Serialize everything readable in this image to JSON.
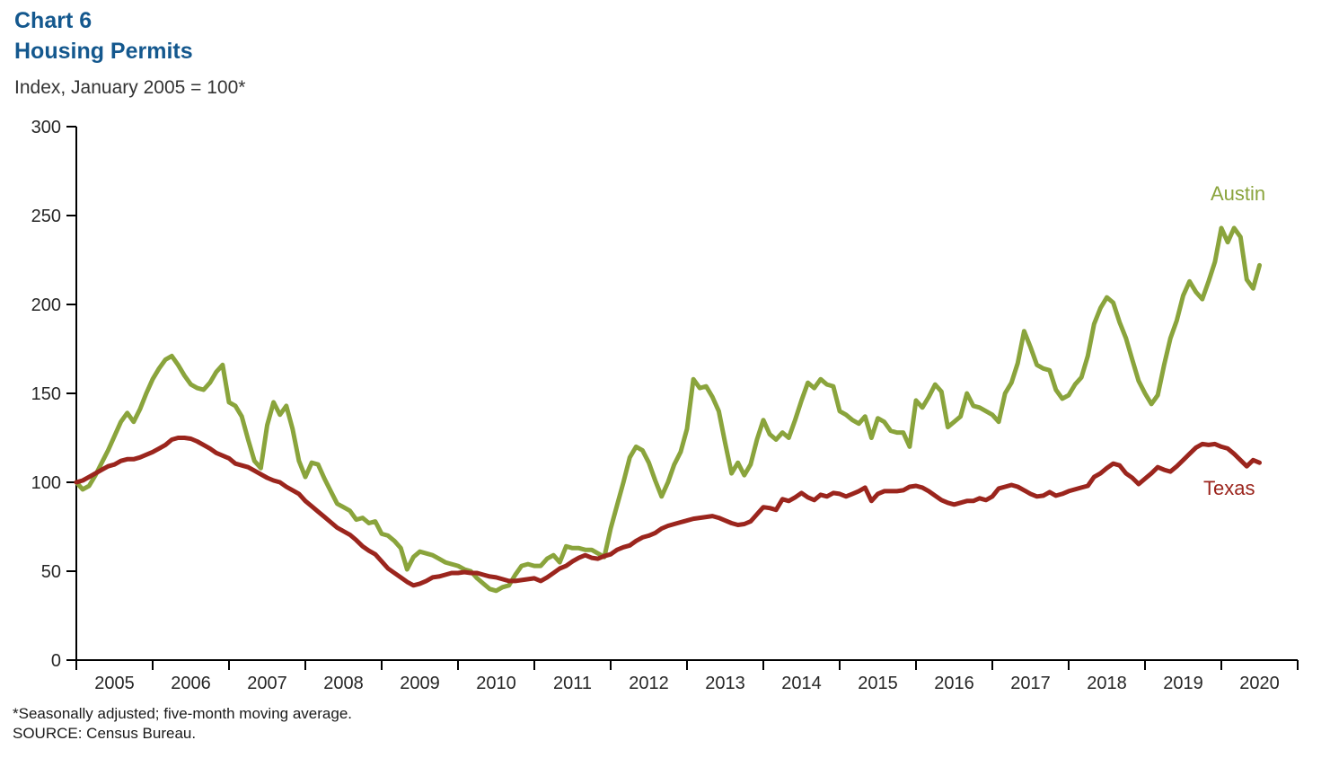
{
  "page": {
    "title_line1": "Chart 6",
    "title_line2": "Housing Permits",
    "subtitle": "Index, January 2005 = 100*",
    "footnote": "*Seasonally adjusted; five-month moving average.",
    "source": "SOURCE: Census Bureau."
  },
  "colors": {
    "title": "#14588E",
    "austin": "#8AA43C",
    "texas": "#9B251D",
    "axis": "#000000",
    "tick_text": "#262626"
  },
  "chart_data": {
    "type": "line",
    "title": "Housing Permits",
    "subtitle": "Index, January 2005 = 100*",
    "x_unit": "month",
    "x_start": "2005-01",
    "x_end": "2020-07",
    "x_tick_years": [
      "2005",
      "2006",
      "2007",
      "2008",
      "2009",
      "2010",
      "2011",
      "2012",
      "2013",
      "2014",
      "2015",
      "2016",
      "2017",
      "2018",
      "2019",
      "2020"
    ],
    "ylim": [
      0,
      300
    ],
    "yticks": [
      0,
      50,
      100,
      150,
      200,
      250,
      300
    ],
    "grid": false,
    "legend": "inline-labels",
    "series": [
      {
        "name": "Austin",
        "color": "#8AA43C",
        "values": [
          100,
          96,
          98,
          104,
          111,
          118,
          126,
          134,
          139,
          134,
          141,
          150,
          158,
          164,
          169,
          171,
          166,
          160,
          155,
          153,
          152,
          156,
          162,
          166,
          145,
          143,
          137,
          124,
          112,
          108,
          132,
          145,
          138,
          143,
          130,
          112,
          103,
          111,
          110,
          102,
          95,
          88,
          86,
          84,
          79,
          80,
          77,
          78,
          71,
          70,
          67,
          63,
          51,
          58,
          61,
          60,
          59,
          57,
          55,
          54,
          53,
          51,
          50,
          46,
          43,
          40,
          39,
          41,
          42,
          48,
          53,
          54,
          53,
          53,
          57,
          59,
          55,
          64,
          63,
          63,
          62,
          62,
          60,
          58,
          74,
          87,
          100,
          114,
          120,
          118,
          111,
          101,
          92,
          100,
          110,
          117,
          130,
          158,
          153,
          154,
          148,
          140,
          122,
          105,
          111,
          104,
          110,
          124,
          135,
          127,
          124,
          128,
          125,
          135,
          146,
          156,
          153,
          158,
          155,
          154,
          140,
          138,
          135,
          133,
          137,
          125,
          136,
          134,
          129,
          128,
          128,
          120,
          146,
          142,
          148,
          155,
          151,
          131,
          134,
          137,
          150,
          143,
          142,
          140,
          138,
          134,
          150,
          156,
          167,
          185,
          176,
          166,
          164,
          163,
          152,
          147,
          149,
          155,
          159,
          171,
          189,
          198,
          204,
          201,
          190,
          181,
          169,
          157,
          150,
          144,
          149,
          166,
          181,
          191,
          205,
          213,
          207,
          203,
          213,
          224,
          243,
          235,
          243,
          238,
          214,
          209,
          222
        ]
      },
      {
        "name": "Texas",
        "color": "#9B251D",
        "values": [
          100,
          101,
          103,
          105,
          107,
          109,
          110,
          112,
          113,
          113,
          114,
          115.5,
          117,
          119,
          121,
          124,
          125,
          125,
          124.5,
          123,
          121,
          119,
          116.5,
          115,
          113.5,
          110.5,
          109.5,
          108.5,
          106.5,
          104.5,
          102.5,
          101,
          100,
          97.5,
          95.5,
          93.5,
          89.5,
          86.5,
          83.5,
          80.5,
          77.5,
          74.5,
          72.5,
          70.5,
          67.5,
          64,
          61.5,
          59.5,
          55.5,
          51.5,
          49,
          46.5,
          44,
          42,
          43,
          44.5,
          46.5,
          47,
          48,
          49,
          49,
          49.5,
          49,
          49,
          48,
          47,
          46.5,
          45.5,
          44.5,
          44.5,
          45,
          45.5,
          46,
          44.5,
          46.5,
          49,
          51.5,
          53,
          55.5,
          57.5,
          59,
          57.5,
          57,
          58.5,
          59.5,
          62,
          63.5,
          64.5,
          67,
          69,
          70,
          71.5,
          74,
          75.5,
          76.5,
          77.5,
          78.5,
          79.5,
          80,
          80.5,
          81,
          80,
          78.5,
          77,
          76,
          76.5,
          78,
          82,
          86,
          85.5,
          84.5,
          90.5,
          89.5,
          91.5,
          94,
          91.5,
          90,
          93,
          92,
          94,
          93.5,
          92,
          93.5,
          95,
          97,
          89.5,
          93.5,
          95,
          95,
          95,
          95.5,
          97.5,
          98,
          97,
          95,
          92.5,
          90,
          88.5,
          87.5,
          88.5,
          89.5,
          89.5,
          91,
          90,
          92,
          96.5,
          97.5,
          98.5,
          97.5,
          95.5,
          93.5,
          92,
          92.5,
          94.5,
          92.5,
          93.5,
          95,
          96,
          97,
          98,
          103,
          105,
          108,
          110.5,
          109.5,
          105,
          102.5,
          99,
          102,
          105,
          108.5,
          107,
          106,
          109,
          112.5,
          116,
          119.5,
          121.5,
          121,
          121.5,
          120,
          119,
          116,
          112.5,
          109,
          112.5,
          111
        ]
      }
    ]
  }
}
